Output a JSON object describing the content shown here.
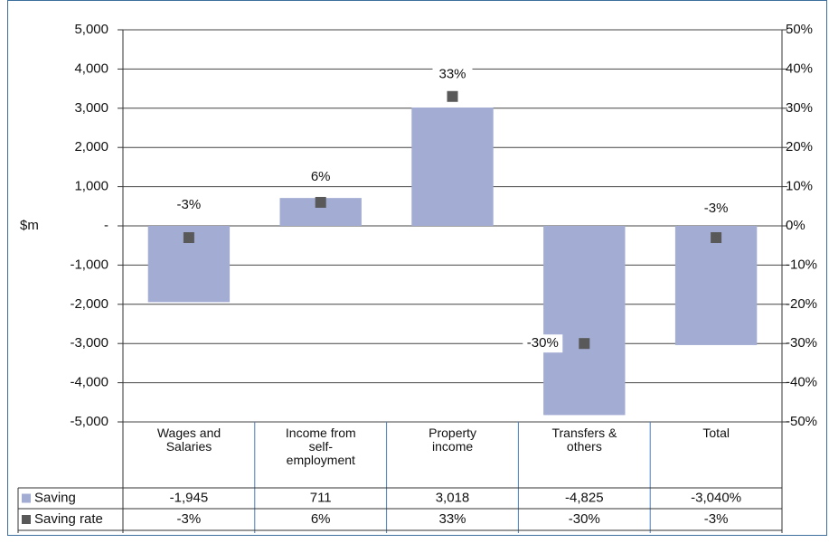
{
  "chart_data": {
    "type": "combo",
    "y_label": "$m",
    "categories": [
      "Wages and\nSalaries",
      "Income from\nself-\nemployment",
      "Property\nincome",
      "Transfers &\nothers",
      "Total"
    ],
    "series": [
      {
        "name": "Saving",
        "type": "bar",
        "color": "#a3acd3",
        "values": [
          -1945,
          711,
          3018,
          -4825,
          -3040
        ],
        "value_labels": [
          "-1,945",
          "711",
          "3,018",
          "-4,825",
          "-3,040%"
        ]
      },
      {
        "name": "Saving rate",
        "type": "marker",
        "axis": "y2",
        "color": "#595959",
        "values": [
          -3,
          6,
          33,
          -30,
          -3
        ],
        "value_labels": [
          "-3%",
          "6%",
          "33%",
          "-30%",
          "-3%"
        ]
      }
    ],
    "ylim": [
      -5000,
      5000
    ],
    "yticks": [
      {
        "value": -5000,
        "label": "-5,000"
      },
      {
        "value": -4000,
        "label": "-4,000"
      },
      {
        "value": -3000,
        "label": "-3,000"
      },
      {
        "value": -2000,
        "label": "-2,000"
      },
      {
        "value": -1000,
        "label": "-1,000"
      },
      {
        "value": 0,
        "label": "-"
      },
      {
        "value": 1000,
        "label": "1,000"
      },
      {
        "value": 2000,
        "label": "2,000"
      },
      {
        "value": 3000,
        "label": "3,000"
      },
      {
        "value": 4000,
        "label": "4,000"
      },
      {
        "value": 5000,
        "label": "5,000"
      }
    ],
    "y2lim": [
      -50,
      50
    ],
    "y2ticks": [
      {
        "value": -50,
        "label": "-50%"
      },
      {
        "value": -40,
        "label": "-40%"
      },
      {
        "value": -30,
        "label": "-30%"
      },
      {
        "value": -20,
        "label": "-20%"
      },
      {
        "value": -10,
        "label": "-10%"
      },
      {
        "value": 0,
        "label": "0%"
      },
      {
        "value": 10,
        "label": "10%"
      },
      {
        "value": 20,
        "label": "20%"
      },
      {
        "value": 30,
        "label": "30%"
      },
      {
        "value": 40,
        "label": "40%"
      },
      {
        "value": 50,
        "label": "50%"
      }
    ],
    "grid": true,
    "data_table": true
  }
}
